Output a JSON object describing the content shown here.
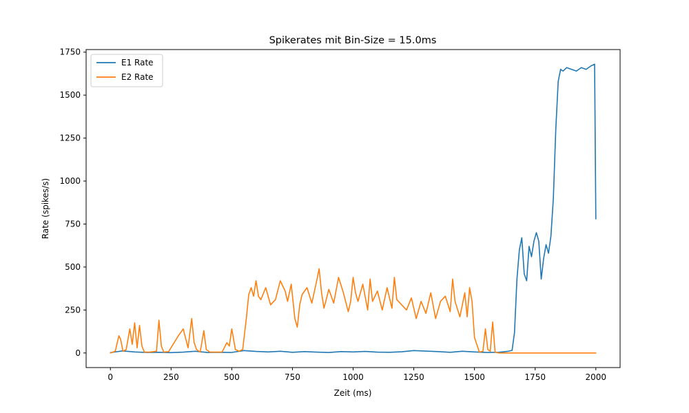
{
  "chart_data": {
    "type": "line",
    "title": "Spikerates mit Bin-Size = 15.0ms",
    "xlabel": "Zeit (ms)",
    "ylabel": "Rate (spikes/s)",
    "xlim": [
      -100,
      2100
    ],
    "ylim": [
      -85,
      1765
    ],
    "x_ticks": [
      0,
      250,
      500,
      750,
      1000,
      1250,
      1500,
      1750,
      2000
    ],
    "x_tick_labels": [
      "0",
      "250",
      "500",
      "750",
      "1000",
      "1250",
      "1500",
      "1750",
      "2000"
    ],
    "y_ticks": [
      0,
      250,
      500,
      750,
      1000,
      1250,
      1500,
      1750
    ],
    "y_tick_labels": [
      "0",
      "250",
      "500",
      "750",
      "1000",
      "1250",
      "1500",
      "1750"
    ],
    "grid": false,
    "legend_position": "upper-left",
    "series": [
      {
        "name": "E1 Rate",
        "color": "#1f77b4",
        "x": [
          0,
          50,
          100,
          150,
          200,
          250,
          300,
          350,
          400,
          450,
          500,
          550,
          600,
          650,
          700,
          750,
          800,
          850,
          900,
          950,
          1000,
          1050,
          1100,
          1150,
          1200,
          1250,
          1300,
          1350,
          1400,
          1450,
          1500,
          1550,
          1600,
          1640,
          1655,
          1665,
          1675,
          1685,
          1695,
          1705,
          1715,
          1725,
          1735,
          1745,
          1755,
          1765,
          1775,
          1785,
          1795,
          1805,
          1815,
          1825,
          1835,
          1845,
          1855,
          1865,
          1880,
          1900,
          1920,
          1940,
          1960,
          1980,
          1995,
          2000
        ],
        "values": [
          2,
          12,
          6,
          3,
          4,
          2,
          5,
          10,
          3,
          4,
          3,
          14,
          9,
          6,
          10,
          4,
          8,
          5,
          3,
          8,
          6,
          9,
          5,
          4,
          7,
          14,
          11,
          8,
          4,
          10,
          6,
          3,
          4,
          10,
          15,
          120,
          430,
          600,
          670,
          460,
          420,
          620,
          560,
          650,
          700,
          650,
          430,
          550,
          630,
          580,
          680,
          900,
          1300,
          1580,
          1650,
          1640,
          1660,
          1650,
          1640,
          1660,
          1650,
          1670,
          1680,
          780
        ]
      },
      {
        "name": "E2 Rate",
        "color": "#ff7f0e",
        "x": [
          0,
          20,
          35,
          42,
          52,
          65,
          80,
          90,
          100,
          110,
          120,
          130,
          140,
          160,
          190,
          200,
          210,
          220,
          240,
          280,
          300,
          320,
          335,
          345,
          355,
          370,
          385,
          395,
          410,
          430,
          460,
          480,
          490,
          500,
          515,
          530,
          545,
          560,
          570,
          580,
          590,
          600,
          610,
          620,
          640,
          660,
          680,
          700,
          720,
          730,
          745,
          760,
          770,
          780,
          790,
          810,
          830,
          850,
          860,
          870,
          880,
          900,
          920,
          940,
          960,
          980,
          990,
          1000,
          1010,
          1020,
          1040,
          1060,
          1070,
          1080,
          1100,
          1120,
          1140,
          1160,
          1170,
          1180,
          1200,
          1220,
          1240,
          1260,
          1280,
          1300,
          1320,
          1340,
          1360,
          1380,
          1400,
          1410,
          1420,
          1440,
          1460,
          1470,
          1480,
          1490,
          1500,
          1520,
          1535,
          1545,
          1555,
          1565,
          1575,
          1585,
          1600,
          1650,
          1700,
          1800,
          1900,
          2000
        ],
        "values": [
          0,
          10,
          100,
          80,
          10,
          20,
          140,
          50,
          175,
          30,
          160,
          40,
          5,
          5,
          10,
          190,
          40,
          5,
          8,
          100,
          140,
          30,
          200,
          60,
          20,
          5,
          130,
          20,
          5,
          5,
          5,
          60,
          40,
          140,
          20,
          10,
          20,
          200,
          340,
          380,
          330,
          420,
          330,
          310,
          380,
          280,
          310,
          420,
          360,
          300,
          400,
          200,
          150,
          280,
          340,
          380,
          290,
          420,
          490,
          350,
          260,
          370,
          290,
          440,
          350,
          240,
          300,
          440,
          350,
          300,
          400,
          250,
          430,
          300,
          360,
          250,
          380,
          260,
          440,
          310,
          280,
          250,
          320,
          200,
          300,
          230,
          350,
          200,
          300,
          330,
          240,
          430,
          300,
          210,
          350,
          210,
          380,
          300,
          90,
          5,
          10,
          140,
          20,
          10,
          180,
          5,
          0,
          0,
          0,
          0,
          0,
          0
        ]
      }
    ]
  }
}
